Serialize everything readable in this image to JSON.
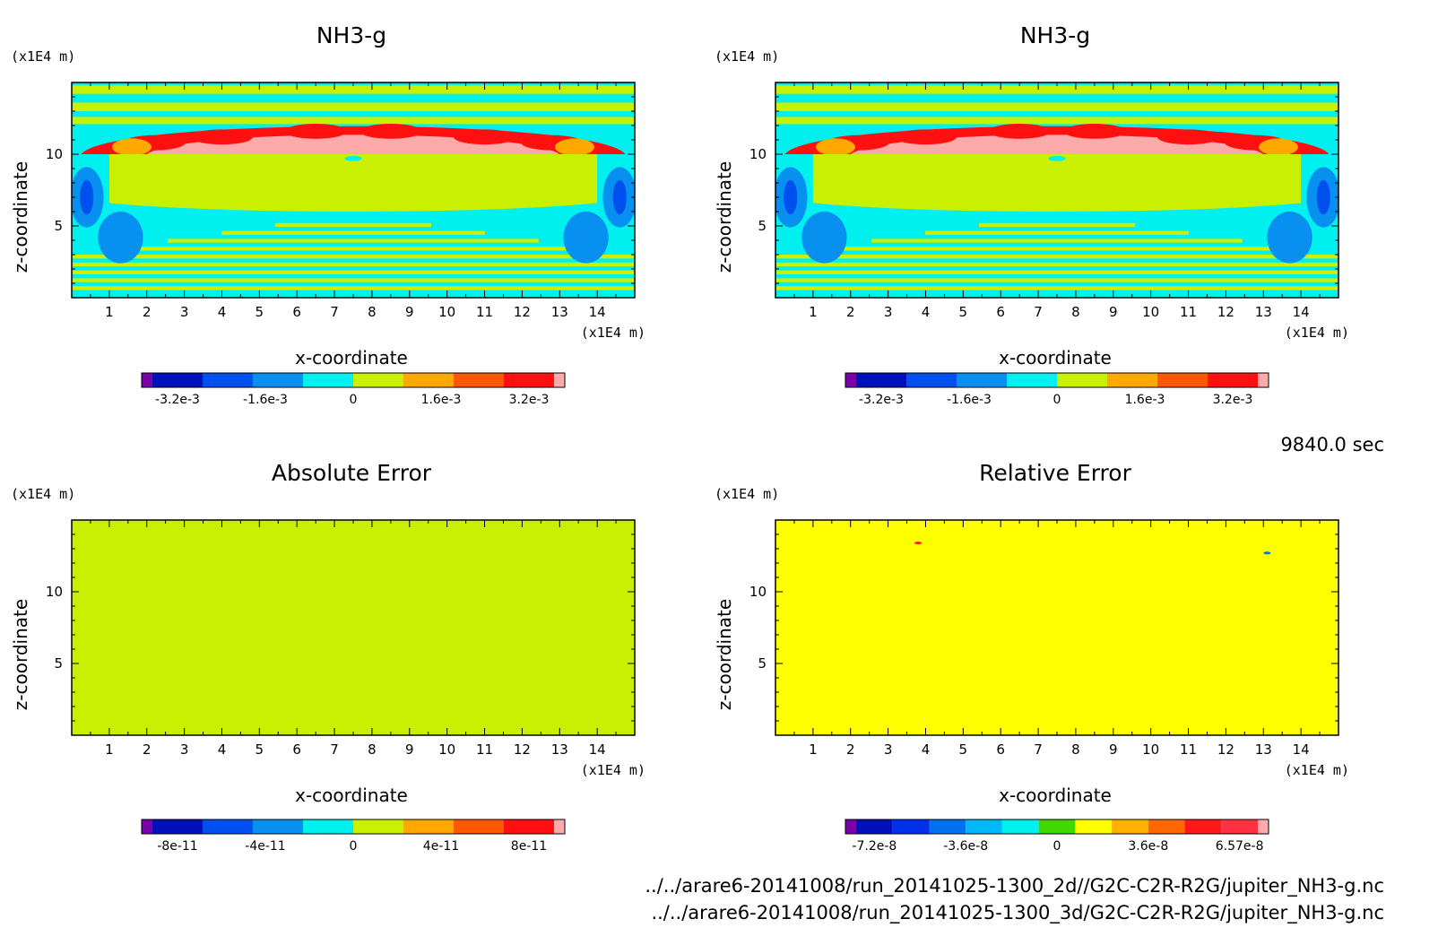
{
  "time_label": "9840.0 sec",
  "footer": {
    "file_2d": "../../arare6-20141008/run_20141025-1300_2d//G2C-C2R-R2G/jupiter_NH3-g.nc",
    "file_3d": "../../arare6-20141008/run_20141025-1300_3d/G2C-C2R-R2G/jupiter_NH3-g.nc"
  },
  "chart_data": [
    {
      "type": "heatmap",
      "title": "NH3-g",
      "xlabel": "x-coordinate",
      "ylabel": "z-coordinate",
      "x_unit": "(x1E4 m)",
      "y_unit": "(x1E4 m)",
      "xlim": [
        0,
        15
      ],
      "ylim": [
        0,
        15
      ],
      "x_ticks": [
        "1",
        "2",
        "3",
        "4",
        "5",
        "6",
        "7",
        "8",
        "9",
        "10",
        "11",
        "12",
        "13",
        "14"
      ],
      "y_ticks": [
        "5",
        "10"
      ],
      "colorbar": {
        "colors": [
          "#7a00a8",
          "#0010b8",
          "#0050f0",
          "#0890f0",
          "#00f0f0",
          "#c8f000",
          "#ffa800",
          "#ff5800",
          "#ff1010",
          "#ffaaaa"
        ],
        "labels": [
          "-3.2e-3",
          "-1.6e-3",
          "0",
          "1.6e-3",
          "3.2e-3"
        ]
      },
      "pattern": "nh3"
    },
    {
      "type": "heatmap",
      "title": "NH3-g",
      "xlabel": "x-coordinate",
      "ylabel": "z-coordinate",
      "x_unit": "(x1E4 m)",
      "y_unit": "(x1E4 m)",
      "xlim": [
        0,
        15
      ],
      "ylim": [
        0,
        15
      ],
      "x_ticks": [
        "1",
        "2",
        "3",
        "4",
        "5",
        "6",
        "7",
        "8",
        "9",
        "10",
        "11",
        "12",
        "13",
        "14"
      ],
      "y_ticks": [
        "5",
        "10"
      ],
      "colorbar": {
        "colors": [
          "#7a00a8",
          "#0010b8",
          "#0050f0",
          "#0890f0",
          "#00f0f0",
          "#c8f000",
          "#ffa800",
          "#ff5800",
          "#ff1010",
          "#ffaaaa"
        ],
        "labels": [
          "-3.2e-3",
          "-1.6e-3",
          "0",
          "1.6e-3",
          "3.2e-3"
        ]
      },
      "pattern": "nh3"
    },
    {
      "type": "heatmap",
      "title": "Absolute Error",
      "xlabel": "x-coordinate",
      "ylabel": "z-coordinate",
      "x_unit": "(x1E4 m)",
      "y_unit": "(x1E4 m)",
      "xlim": [
        0,
        15
      ],
      "ylim": [
        0,
        15
      ],
      "x_ticks": [
        "1",
        "2",
        "3",
        "4",
        "5",
        "6",
        "7",
        "8",
        "9",
        "10",
        "11",
        "12",
        "13",
        "14"
      ],
      "y_ticks": [
        "5",
        "10"
      ],
      "colorbar": {
        "colors": [
          "#7a00a8",
          "#0010b8",
          "#0050f0",
          "#0890f0",
          "#00f0f0",
          "#c8f000",
          "#ffa800",
          "#ff5800",
          "#ff1010",
          "#ffaaaa"
        ],
        "labels": [
          "-8e-11",
          "-4e-11",
          "0",
          "4e-11",
          "8e-11"
        ]
      },
      "pattern": "uniform",
      "fill": "#c8f000"
    },
    {
      "type": "heatmap",
      "title": "Relative Error",
      "xlabel": "x-coordinate",
      "ylabel": "z-coordinate",
      "x_unit": "(x1E4 m)",
      "y_unit": "(x1E4 m)",
      "xlim": [
        0,
        15
      ],
      "ylim": [
        0,
        15
      ],
      "x_ticks": [
        "1",
        "2",
        "3",
        "4",
        "5",
        "6",
        "7",
        "8",
        "9",
        "10",
        "11",
        "12",
        "13",
        "14"
      ],
      "y_ticks": [
        "5",
        "10"
      ],
      "colorbar": {
        "colors": [
          "#7a00a8",
          "#0010b8",
          "#0030e8",
          "#0070f0",
          "#00b8f8",
          "#00f0f0",
          "#40d800",
          "#ffff00",
          "#ffb000",
          "#ff6800",
          "#ff1818",
          "#ff3040",
          "#ffaaaa"
        ],
        "labels": [
          "-7.2e-8",
          "-3.6e-8",
          "0",
          "3.6e-8",
          "6.57e-8"
        ]
      },
      "pattern": "uniform",
      "fill": "#ffff00"
    }
  ]
}
